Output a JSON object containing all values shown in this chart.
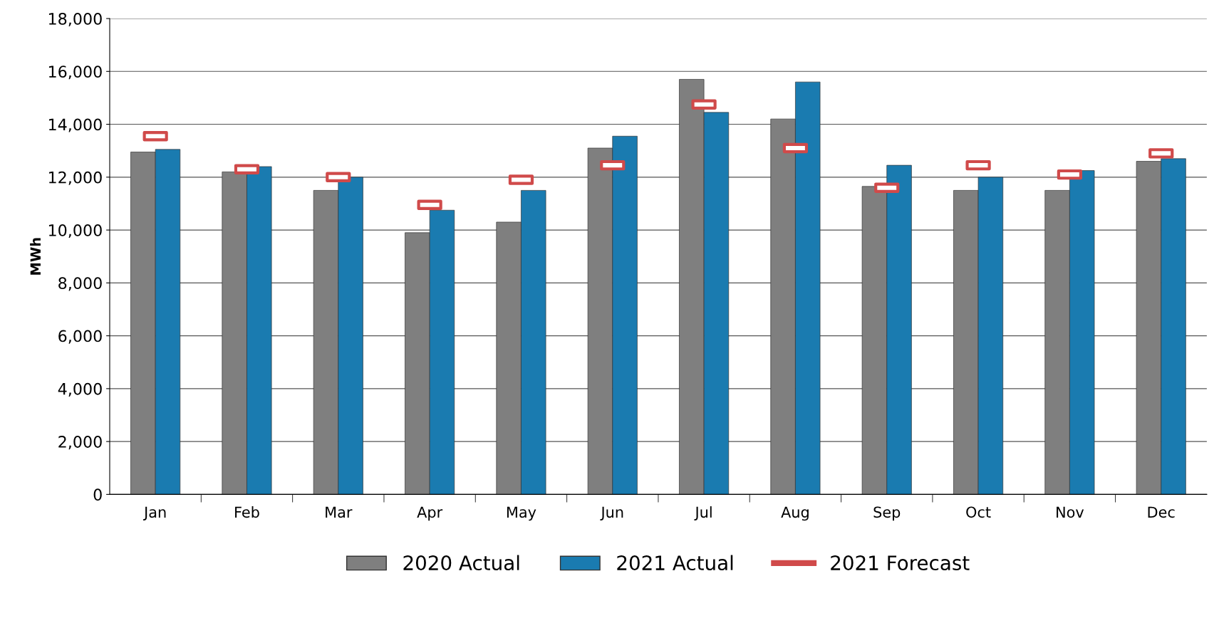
{
  "chart_data": {
    "type": "bar",
    "ylabel": "MWh",
    "categories": [
      "Jan",
      "Feb",
      "Mar",
      "Apr",
      "May",
      "Jun",
      "Jul",
      "Aug",
      "Sep",
      "Oct",
      "Nov",
      "Dec"
    ],
    "series": [
      {
        "name": "2020 Actual",
        "color": "#7f7f7f",
        "values": [
          12950,
          12200,
          11500,
          9900,
          10300,
          13100,
          15700,
          14200,
          11650,
          11500,
          11500,
          12600
        ]
      },
      {
        "name": "2021 Actual",
        "color": "#1a7bb0",
        "values": [
          13050,
          12400,
          12000,
          10750,
          11500,
          13550,
          14450,
          15600,
          12450,
          12000,
          12250,
          12700
        ]
      },
      {
        "name": "2021 Forecast",
        "type": "scatter",
        "color": "#d04a4a",
        "x": [
          "Jan",
          "Feb",
          "Mar",
          "Apr",
          "May",
          "Jun",
          "Jul",
          "Aug",
          "Sep",
          "Oct",
          "Nov",
          "Dec"
        ],
        "values": [
          13550,
          12300,
          12000,
          10950,
          11900,
          12450,
          14750,
          13100,
          11600,
          12450,
          12100,
          12900
        ]
      }
    ],
    "ylim": [
      0,
      18000
    ],
    "yticks": [
      {
        "value": 0,
        "label": "0"
      },
      {
        "value": 2000,
        "label": "2,000"
      },
      {
        "value": 4000,
        "label": "4,000"
      },
      {
        "value": 6000,
        "label": "6,000"
      },
      {
        "value": 8000,
        "label": "8,000"
      },
      {
        "value": 10000,
        "label": "10,000"
      },
      {
        "value": 12000,
        "label": "12,000"
      },
      {
        "value": 14000,
        "label": "14,000"
      },
      {
        "value": 16000,
        "label": "16,000"
      },
      {
        "value": 18000,
        "label": "18,000"
      }
    ],
    "grid": "y",
    "legend": "bottom"
  }
}
